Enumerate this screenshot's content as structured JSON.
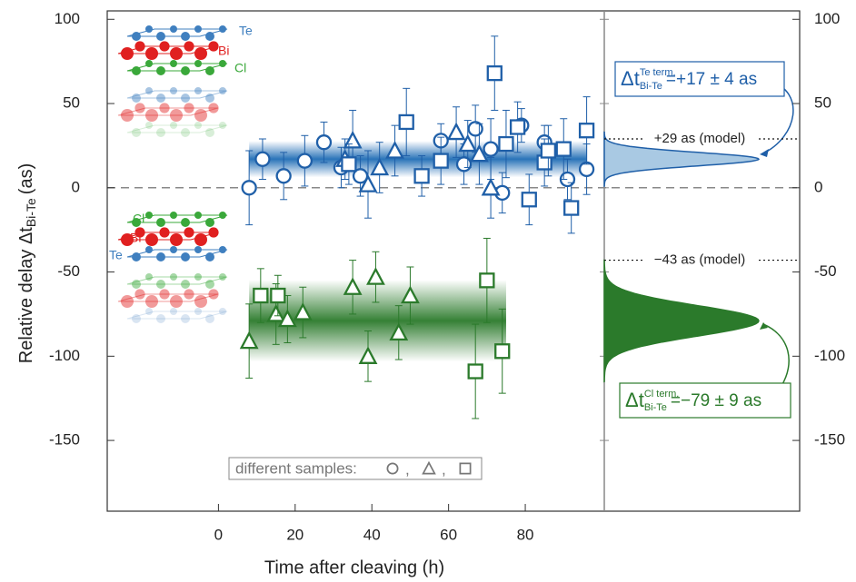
{
  "chart_data": {
    "type": "scatter",
    "xlabel": "Time after cleaving (h)",
    "ylabel": {
      "text": "Relative delay Δt",
      "sub": "Bi-Te",
      "unit": "(as)"
    },
    "xlim": [
      -29,
      100.6
    ],
    "xticks": [
      0,
      20,
      40,
      60,
      80
    ],
    "ylim": [
      -192,
      105
    ],
    "yticks": [
      -150,
      -100,
      -50,
      0,
      50,
      100
    ],
    "reference_line": 0,
    "series": [
      {
        "color": "#1f5fa8",
        "marker": "circle",
        "x": [
          8,
          11.5,
          17,
          22.5,
          27.5,
          32,
          37,
          58,
          64,
          67,
          71,
          74,
          79,
          85,
          91,
          96
        ],
        "values": [
          0,
          17,
          7,
          16,
          27,
          12,
          7,
          28,
          14,
          35,
          23,
          -3,
          37,
          27,
          5,
          11
        ],
        "errors": [
          22,
          12,
          14,
          15,
          12,
          12,
          12,
          10,
          12,
          14,
          18,
          12,
          10,
          10,
          12,
          15
        ]
      },
      {
        "color": "#1f5fa8",
        "marker": "triangle",
        "x": [
          33,
          35,
          39,
          42,
          46,
          62,
          65,
          68,
          71
        ],
        "values": [
          17,
          28,
          2,
          12,
          22,
          33,
          26,
          20,
          0
        ],
        "errors": [
          12,
          18,
          20,
          15,
          15,
          15,
          14,
          18,
          18
        ]
      },
      {
        "color": "#1f5fa8",
        "marker": "square",
        "x": [
          34,
          49,
          53,
          58,
          72,
          75,
          78,
          81,
          85,
          86,
          90,
          92,
          96
        ],
        "values": [
          14,
          39,
          7,
          16,
          68,
          26,
          36,
          -7,
          15,
          22,
          23,
          -12,
          34
        ],
        "errors": [
          12,
          20,
          12,
          14,
          22,
          20,
          15,
          15,
          14,
          15,
          18,
          15,
          20
        ]
      },
      {
        "color": "#2b7a2b",
        "marker": "triangle",
        "x": [
          8,
          15,
          18,
          22,
          35,
          39,
          41,
          47,
          50
        ],
        "values": [
          -91,
          -75,
          -78,
          -74,
          -59,
          -100,
          -53,
          -86,
          -64
        ],
        "errors": [
          22,
          18,
          14,
          15,
          16,
          15,
          15,
          16,
          17
        ]
      },
      {
        "color": "#2b7a2b",
        "marker": "square",
        "x": [
          11,
          15.5,
          67,
          70,
          74
        ],
        "values": [
          -64,
          -64,
          -109,
          -55,
          -97
        ],
        "errors": [
          16,
          12,
          28,
          25,
          25
        ]
      }
    ],
    "bands": [
      {
        "color": "#1f5fa8",
        "fill": "#a9c9e3",
        "value": 17,
        "error": 4,
        "xrange": [
          8,
          96
        ],
        "label": {
          "symbol": "Δt",
          "sup": "Te term.",
          "sub": "Bi-Te",
          "text": "=+17 ± 4 as"
        }
      },
      {
        "color": "#2b7a2b",
        "fill": "#2b7a2b",
        "value": -79,
        "error": 9,
        "xrange": [
          8,
          75
        ],
        "label": {
          "symbol": "Δt",
          "sup": "Cl term.",
          "sub": "Bi-Te",
          "text": "=−79 ± 9 as"
        }
      }
    ],
    "model_lines": [
      {
        "value": 29,
        "label": "+29 as (model)"
      },
      {
        "value": -43,
        "label": "−43 as (model)"
      }
    ],
    "legend": {
      "title": "different samples:",
      "separator": ",",
      "markers": [
        "circle",
        "triangle",
        "square"
      ]
    },
    "structures": [
      {
        "labels": [
          "Te",
          "Bi",
          "Cl"
        ]
      },
      {
        "labels": [
          "Cl",
          "Bi",
          "Te"
        ]
      }
    ]
  }
}
